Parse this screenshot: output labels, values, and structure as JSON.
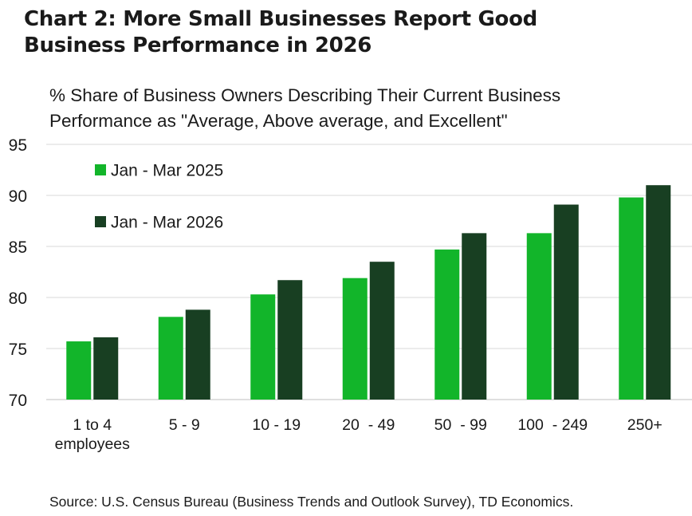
{
  "title_line1": "Chart 2: More Small Businesses Report Good",
  "title_line2": "Business Performance in 2026",
  "subtitle_line1": "% Share of Business Owners Describing Their Current Business",
  "subtitle_line2": "Performance as \"Average, Above average, and Excellent\"",
  "source": "Source: U.S. Census Bureau (Business Trends and Outlook Survey), TD Economics.",
  "chart_data": {
    "type": "bar",
    "categories": [
      [
        "1 to 4",
        "employees"
      ],
      [
        "5 - 9"
      ],
      [
        "10 - 19"
      ],
      [
        "20  - 49"
      ],
      [
        "50  - 99"
      ],
      [
        "100  - 249"
      ],
      [
        "250+"
      ]
    ],
    "series": [
      {
        "name": "Jan - Mar 2025",
        "color": "#12b52a",
        "values": [
          75.7,
          78.1,
          80.3,
          81.9,
          84.7,
          86.3,
          89.8
        ]
      },
      {
        "name": "Jan - Mar 2026",
        "color": "#183f22",
        "values": [
          76.1,
          78.8,
          81.7,
          83.5,
          86.3,
          89.1,
          91.0
        ]
      }
    ],
    "ylim": [
      70,
      95
    ],
    "yticks": [
      "70",
      "75",
      "80",
      "85",
      "90",
      "95"
    ],
    "grid": true,
    "legend_position": "top-left"
  }
}
